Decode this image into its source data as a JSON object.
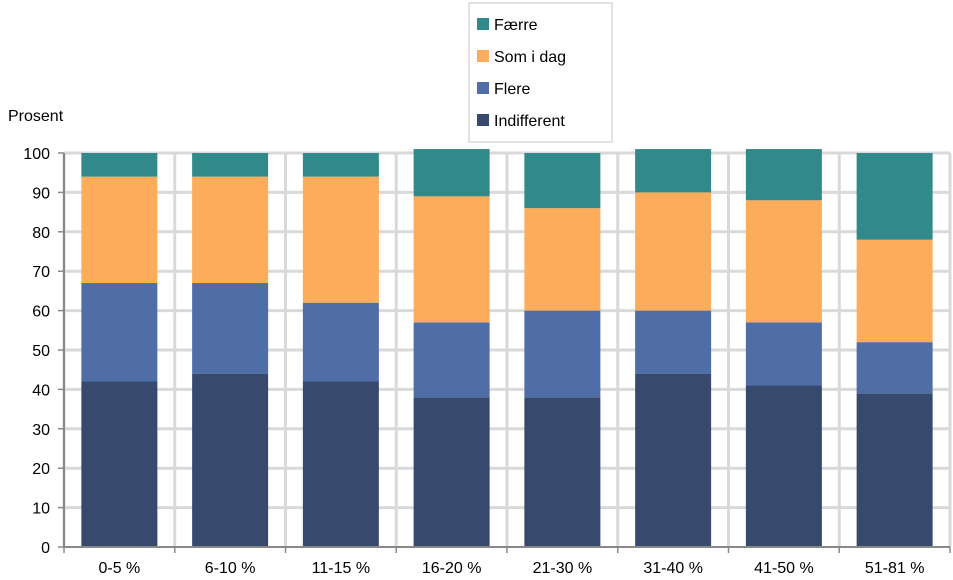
{
  "chart_data": {
    "type": "bar",
    "stacked": true,
    "ylabel": "Prosent",
    "ylim": [
      0,
      100
    ],
    "yticks": [
      0,
      10,
      20,
      30,
      40,
      50,
      60,
      70,
      80,
      90,
      100
    ],
    "grid": true,
    "legend_position": "top-center",
    "categories": [
      "0-5 %",
      "6-10 %",
      "11-15 %",
      "16-20 %",
      "21-30 %",
      "31-40 %",
      "41-50 %",
      "51-81 %"
    ],
    "series": [
      {
        "name": "Indifferent",
        "color": "#374a6d",
        "values": [
          42,
          44,
          42,
          38,
          38,
          44,
          41,
          39
        ]
      },
      {
        "name": "Flere",
        "color": "#4f6ea7",
        "values": [
          25,
          23,
          20,
          19,
          22,
          16,
          16,
          13
        ]
      },
      {
        "name": "Som i dag",
        "color": "#fdac5b",
        "values": [
          27,
          27,
          32,
          32,
          26,
          30,
          31,
          26
        ]
      },
      {
        "name": "Færre",
        "color": "#32898a",
        "values": [
          6,
          6,
          6,
          12,
          14,
          11,
          13,
          22
        ]
      }
    ],
    "legend_order": [
      "Færre",
      "Som i dag",
      "Flere",
      "Indifferent"
    ]
  }
}
